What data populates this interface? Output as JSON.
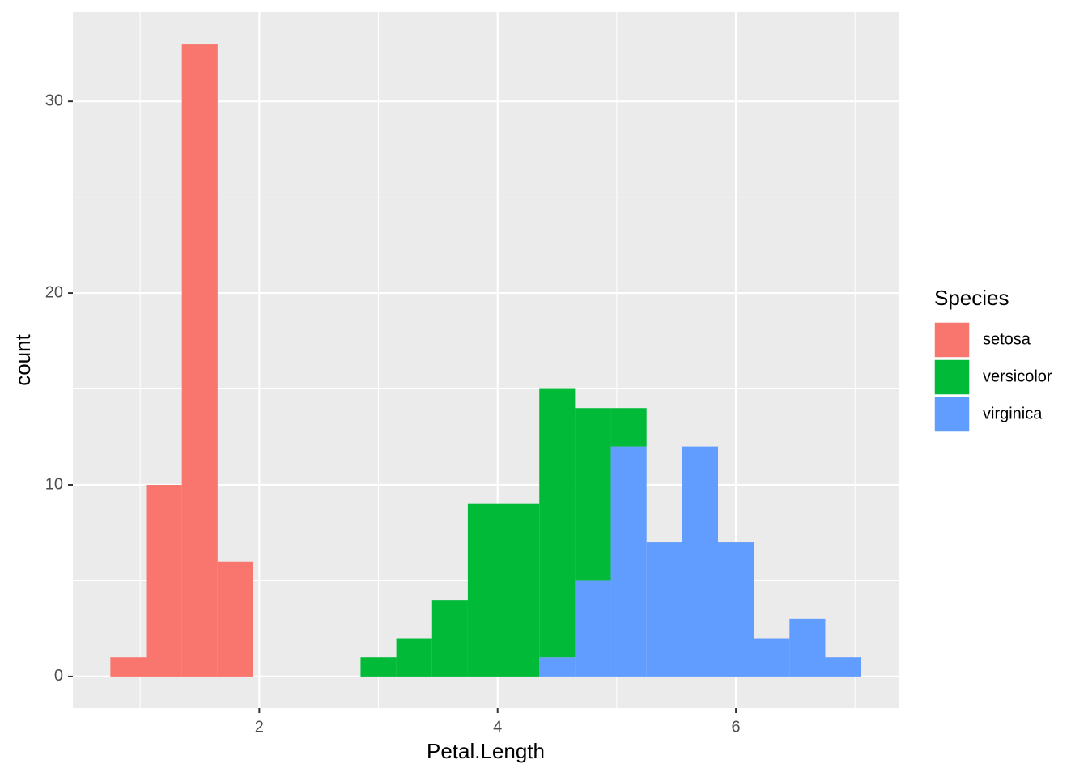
{
  "chart_data": {
    "type": "histogram",
    "x_label": "Petal.Length",
    "y_label": "count",
    "legend_title": "Species",
    "legend_position": "right",
    "grid": true,
    "stacked": true,
    "bins": [
      0.75,
      1.05,
      1.35,
      1.65,
      1.95,
      2.25,
      2.55,
      2.85,
      3.15,
      3.45,
      3.75,
      4.05,
      4.35,
      4.65,
      4.95,
      5.25,
      5.55,
      5.85,
      6.15,
      6.45,
      6.75,
      7.05
    ],
    "series": [
      {
        "name": "setosa",
        "color": "#F8766D",
        "values": [
          1,
          10,
          33,
          6,
          0,
          0,
          0,
          0,
          0,
          0,
          0,
          0,
          0,
          0,
          0,
          0,
          0,
          0,
          0,
          0,
          0
        ]
      },
      {
        "name": "versicolor",
        "color": "#00BA38",
        "values": [
          0,
          0,
          0,
          0,
          0,
          0,
          0,
          1,
          2,
          4,
          9,
          9,
          14,
          9,
          2,
          0,
          0,
          0,
          0,
          0,
          0
        ]
      },
      {
        "name": "virginica",
        "color": "#619CFF",
        "values": [
          0,
          0,
          0,
          0,
          0,
          0,
          0,
          0,
          0,
          0,
          0,
          0,
          1,
          5,
          12,
          7,
          12,
          7,
          2,
          3,
          1
        ]
      }
    ],
    "xlim": [
      0.435,
      7.365
    ],
    "xticks": [
      2,
      4,
      6
    ],
    "ylim": [
      -1.65,
      34.65
    ],
    "yticks": [
      0,
      10,
      20,
      30
    ]
  }
}
